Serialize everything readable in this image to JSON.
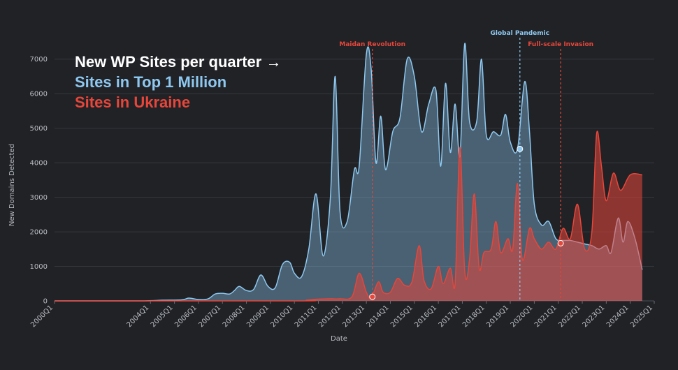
{
  "chart_data": {
    "type": "area",
    "title_lines": [
      {
        "text": "New WP Sites per quarter →",
        "color": "#ffffff"
      },
      {
        "text": "Sites in Top 1 Million",
        "color": "#8ec8f0"
      },
      {
        "text": "Sites in Ukraine",
        "color": "#e8463a"
      }
    ],
    "xlabel": "Date",
    "ylabel": "New Domains Detected",
    "ylim": [
      0,
      7500
    ],
    "yticks": [
      0,
      1000,
      2000,
      3000,
      4000,
      5000,
      6000,
      7000
    ],
    "xtick_labels": [
      "2000Q1",
      "2004Q1",
      "2005Q1",
      "2006Q1",
      "2007Q1",
      "2008Q1",
      "2009Q1",
      "2010Q1",
      "2011Q1",
      "2012Q1",
      "2013Q1",
      "2014Q1",
      "2015Q1",
      "2016Q1",
      "2017Q1",
      "2018Q1",
      "2019Q1",
      "2020Q1",
      "2021Q1",
      "2022Q1",
      "2023Q1",
      "2024Q1",
      "2025Q1"
    ],
    "x_range": [
      2000.0,
      2025.0
    ],
    "series": [
      {
        "name": "Sites in Top 1 Million",
        "color": "#8ec8f0",
        "points": [
          [
            2000.0,
            0
          ],
          [
            2003.5,
            0
          ],
          [
            2004.5,
            20
          ],
          [
            2005.3,
            30
          ],
          [
            2005.6,
            80
          ],
          [
            2006.0,
            40
          ],
          [
            2006.4,
            60
          ],
          [
            2006.7,
            200
          ],
          [
            2007.0,
            220
          ],
          [
            2007.3,
            200
          ],
          [
            2007.5,
            300
          ],
          [
            2007.7,
            420
          ],
          [
            2008.0,
            300
          ],
          [
            2008.3,
            330
          ],
          [
            2008.6,
            750
          ],
          [
            2008.9,
            420
          ],
          [
            2009.2,
            380
          ],
          [
            2009.5,
            1050
          ],
          [
            2009.8,
            1120
          ],
          [
            2010.0,
            800
          ],
          [
            2010.3,
            700
          ],
          [
            2010.6,
            1500
          ],
          [
            2010.9,
            3100
          ],
          [
            2011.2,
            1300
          ],
          [
            2011.5,
            3000
          ],
          [
            2011.7,
            6500
          ],
          [
            2011.9,
            2600
          ],
          [
            2012.2,
            2300
          ],
          [
            2012.5,
            3800
          ],
          [
            2012.7,
            3900
          ],
          [
            2013.0,
            7150
          ],
          [
            2013.2,
            6700
          ],
          [
            2013.4,
            4000
          ],
          [
            2013.6,
            5350
          ],
          [
            2013.8,
            3800
          ],
          [
            2014.1,
            4900
          ],
          [
            2014.4,
            5300
          ],
          [
            2014.7,
            7000
          ],
          [
            2015.0,
            6500
          ],
          [
            2015.3,
            4900
          ],
          [
            2015.6,
            5700
          ],
          [
            2015.9,
            6100
          ],
          [
            2016.1,
            3900
          ],
          [
            2016.3,
            6300
          ],
          [
            2016.5,
            4300
          ],
          [
            2016.7,
            5700
          ],
          [
            2016.9,
            4200
          ],
          [
            2017.1,
            7450
          ],
          [
            2017.3,
            5200
          ],
          [
            2017.6,
            5200
          ],
          [
            2017.8,
            7000
          ],
          [
            2018.0,
            4800
          ],
          [
            2018.3,
            4900
          ],
          [
            2018.6,
            4800
          ],
          [
            2018.8,
            5400
          ],
          [
            2019.0,
            4600
          ],
          [
            2019.3,
            4400
          ],
          [
            2019.6,
            6350
          ],
          [
            2019.8,
            4900
          ],
          [
            2020.0,
            2800
          ],
          [
            2020.3,
            2200
          ],
          [
            2020.6,
            2300
          ],
          [
            2020.9,
            1800
          ],
          [
            2021.2,
            1750
          ],
          [
            2021.5,
            1750
          ],
          [
            2021.8,
            1700
          ],
          [
            2022.1,
            1650
          ],
          [
            2022.4,
            1600
          ],
          [
            2022.7,
            1500
          ],
          [
            2023.0,
            1600
          ],
          [
            2023.2,
            1400
          ],
          [
            2023.5,
            2400
          ],
          [
            2023.7,
            1700
          ],
          [
            2023.9,
            2300
          ],
          [
            2024.2,
            1800
          ],
          [
            2024.5,
            900
          ]
        ]
      },
      {
        "name": "Sites in Ukraine",
        "color": "#e8463a",
        "points": [
          [
            2000.0,
            0
          ],
          [
            2010.0,
            0
          ],
          [
            2010.5,
            20
          ],
          [
            2011.0,
            50
          ],
          [
            2011.5,
            60
          ],
          [
            2011.9,
            60
          ],
          [
            2012.4,
            120
          ],
          [
            2012.7,
            800
          ],
          [
            2013.0,
            250
          ],
          [
            2013.2,
            80
          ],
          [
            2013.5,
            550
          ],
          [
            2013.7,
            250
          ],
          [
            2014.0,
            250
          ],
          [
            2014.3,
            650
          ],
          [
            2014.6,
            450
          ],
          [
            2014.9,
            550
          ],
          [
            2015.2,
            1600
          ],
          [
            2015.4,
            600
          ],
          [
            2015.7,
            350
          ],
          [
            2016.0,
            1000
          ],
          [
            2016.2,
            500
          ],
          [
            2016.5,
            950
          ],
          [
            2016.7,
            500
          ],
          [
            2016.9,
            4450
          ],
          [
            2017.1,
            850
          ],
          [
            2017.3,
            1200
          ],
          [
            2017.5,
            3100
          ],
          [
            2017.7,
            950
          ],
          [
            2017.9,
            1400
          ],
          [
            2018.2,
            1500
          ],
          [
            2018.4,
            2300
          ],
          [
            2018.6,
            1400
          ],
          [
            2018.9,
            1800
          ],
          [
            2019.1,
            1500
          ],
          [
            2019.3,
            3400
          ],
          [
            2019.5,
            1200
          ],
          [
            2019.8,
            2100
          ],
          [
            2020.0,
            1800
          ],
          [
            2020.3,
            1500
          ],
          [
            2020.6,
            1700
          ],
          [
            2020.9,
            1500
          ],
          [
            2021.2,
            2100
          ],
          [
            2021.5,
            1800
          ],
          [
            2021.8,
            2800
          ],
          [
            2022.1,
            1500
          ],
          [
            2022.4,
            2000
          ],
          [
            2022.6,
            4850
          ],
          [
            2022.8,
            3900
          ],
          [
            2023.0,
            2900
          ],
          [
            2023.3,
            3700
          ],
          [
            2023.6,
            3200
          ],
          [
            2024.0,
            3650
          ],
          [
            2024.5,
            3650
          ]
        ]
      }
    ],
    "markers": [
      {
        "series": "Sites in Ukraine",
        "x": 2013.25,
        "y": 120
      },
      {
        "series": "Sites in Top 1 Million",
        "x": 2019.4,
        "y": 4400
      },
      {
        "series": "Sites in Ukraine",
        "x": 2021.1,
        "y": 1670
      }
    ],
    "annotations": [
      {
        "label": "Maidan Revolution",
        "x": 2013.25,
        "color": "#e8463a"
      },
      {
        "label": "Global Pandemic",
        "x": 2019.4,
        "color": "#8ec8f0"
      },
      {
        "label": "Full-scale Invasion",
        "x": 2021.1,
        "color": "#e8463a"
      }
    ],
    "grid": true
  }
}
